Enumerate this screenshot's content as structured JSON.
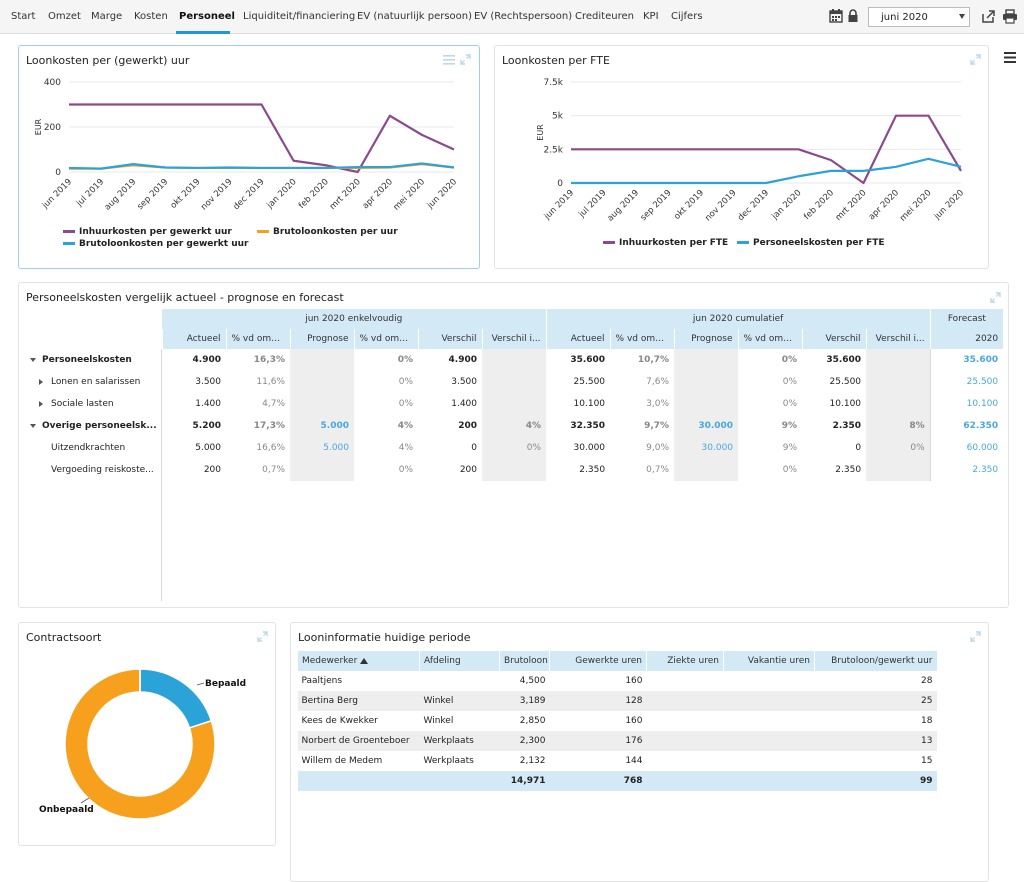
{
  "nav": {
    "items": [
      "Start",
      "Omzet",
      "Marge",
      "Kosten",
      "Personeel",
      "Liquiditeit/financiering",
      "EV (natuurlijk persoon)",
      "EV (Rechtspersoon)",
      "Crediteuren",
      "KPI",
      "Cijfers"
    ],
    "active": "Personeel",
    "period_value": "juni 2020",
    "icons": [
      "calendar-icon",
      "lock-icon",
      "share-icon",
      "print-icon"
    ]
  },
  "panel1": {
    "title": "Loonkosten per (gewerkt) uur",
    "legend": [
      "Inhuurkosten per gewerkt uur",
      "Brutoloonkosten per uur",
      "Brutoloonkosten per gewerkt uur"
    ]
  },
  "panel2": {
    "title": "Loonkosten per FTE",
    "legend": [
      "Inhuurkosten per FTE",
      "Personeelskosten per FTE"
    ]
  },
  "panel3": {
    "title": "Personeelskosten vergelijk actueel - prognose en forecast",
    "group_headers": [
      "jun 2020 enkelvoudig",
      "jun 2020 cumulatief",
      "Forecast"
    ],
    "columns": [
      "Actueel",
      "% vd omzet",
      "Prognose",
      "% vd omzet",
      "Verschil",
      "Verschil i...",
      "Actueel",
      "% vd omzet",
      "Prognose",
      "% vd omzet",
      "Verschil",
      "Verschil i...",
      "2020"
    ],
    "rows": [
      {
        "label": "Personeelskosten",
        "cells": [
          "4.900",
          "16,3%",
          "",
          "0%",
          "4.900",
          "",
          "35.600",
          "10,7%",
          "",
          "0%",
          "35.600",
          "",
          "35.600"
        ]
      },
      {
        "label": "Lonen en salarissen",
        "cells": [
          "3.500",
          "11,6%",
          "",
          "0%",
          "3.500",
          "",
          "25.500",
          "7,6%",
          "",
          "0%",
          "25.500",
          "",
          "25.500"
        ]
      },
      {
        "label": "Sociale lasten",
        "cells": [
          "1.400",
          "4,7%",
          "",
          "0%",
          "1.400",
          "",
          "10.100",
          "3,0%",
          "",
          "0%",
          "10.100",
          "",
          "10.100"
        ]
      },
      {
        "label": "Overige personeelsk...",
        "cells": [
          "5.200",
          "17,3%",
          "5.000",
          "4%",
          "200",
          "4%",
          "32.350",
          "9,7%",
          "30.000",
          "9%",
          "2.350",
          "8%",
          "62.350"
        ]
      },
      {
        "label": "Uitzendkrachten",
        "cells": [
          "5.000",
          "16,6%",
          "5.000",
          "4%",
          "0",
          "0%",
          "30.000",
          "9,0%",
          "30.000",
          "9%",
          "0",
          "0%",
          "60.000"
        ]
      },
      {
        "label": "Vergoeding reiskoste...",
        "cells": [
          "200",
          "0,7%",
          "",
          "0%",
          "200",
          "",
          "2.350",
          "0,7%",
          "",
          "0%",
          "2.350",
          "",
          "2.350"
        ]
      }
    ]
  },
  "panel4": {
    "title": "Contractsoort",
    "slice_labels": [
      "Bepaald",
      "Onbepaald"
    ]
  },
  "panel5": {
    "title": "Looninformatie huidige periode",
    "columns": [
      "Medewerker",
      "Afdeling",
      "Brutoloon",
      "Gewerkte uren",
      "Ziekte uren",
      "Vakantie uren",
      "Brutoloon/gewerkt uur"
    ],
    "rows": [
      [
        "Paaltjens",
        "",
        "4,500",
        "160",
        "",
        "",
        "28"
      ],
      [
        "Bertina Berg",
        "Winkel",
        "3,189",
        "128",
        "",
        "",
        "25"
      ],
      [
        "Kees de Kwekker",
        "Winkel",
        "2,850",
        "160",
        "",
        "",
        "18"
      ],
      [
        "Norbert de Groenteboer",
        "Werkplaats",
        "2,300",
        "176",
        "",
        "",
        "13"
      ],
      [
        "Willem de Medem",
        "Werkplaats",
        "2,132",
        "144",
        "",
        "",
        "15"
      ]
    ],
    "totals": [
      "",
      "",
      "14,971",
      "768",
      "",
      "",
      "99"
    ]
  },
  "colors": {
    "accent": "#1a9ad6",
    "purple": "#8b4a8e",
    "orange": "#f7a01e",
    "blue": "#2ba3d9",
    "header": "#d3e9f5"
  },
  "chart_data": [
    {
      "type": "line",
      "title": "Loonkosten per (gewerkt) uur",
      "ylabel": "EUR",
      "ylim": [
        0,
        400
      ],
      "yticks": [
        0,
        200,
        400
      ],
      "categories": [
        "jun 2019",
        "jul 2019",
        "aug 2019",
        "sep 2019",
        "okt 2019",
        "nov 2019",
        "dec 2019",
        "jan 2020",
        "feb 2020",
        "mrt 2020",
        "apr 2020",
        "mei 2020",
        "jun 2020"
      ],
      "series": [
        {
          "name": "Inhuurkosten per gewerkt uur",
          "color": "#8b4a8e",
          "values": [
            300,
            300,
            300,
            300,
            300,
            300,
            300,
            50,
            30,
            0,
            250,
            165,
            100
          ]
        },
        {
          "name": "Brutoloonkosten per uur",
          "color": "#f7a01e",
          "values": [
            15,
            15,
            30,
            20,
            18,
            18,
            18,
            18,
            18,
            18,
            20,
            35,
            20
          ]
        },
        {
          "name": "Brutoloonkosten per gewerkt uur",
          "color": "#2ba3d9",
          "values": [
            18,
            15,
            35,
            20,
            18,
            20,
            18,
            18,
            18,
            22,
            22,
            38,
            20
          ]
        }
      ],
      "legend": "bottom"
    },
    {
      "type": "line",
      "title": "Loonkosten per FTE",
      "ylabel": "EUR",
      "ylim": [
        0,
        7500
      ],
      "yticks": [
        0,
        2500,
        5000,
        7500
      ],
      "yticklabels": [
        "0",
        "2.5k",
        "5k",
        "7.5k"
      ],
      "categories": [
        "jun 2019",
        "jul 2019",
        "aug 2019",
        "sep 2019",
        "okt 2019",
        "nov 2019",
        "dec 2019",
        "jan 2020",
        "feb 2020",
        "mrt 2020",
        "apr 2020",
        "mei 2020",
        "jun 2020"
      ],
      "series": [
        {
          "name": "Inhuurkosten per FTE",
          "color": "#8b4a8e",
          "values": [
            2500,
            2500,
            2500,
            2500,
            2500,
            2500,
            2500,
            2500,
            1700,
            0,
            5000,
            5000,
            900
          ]
        },
        {
          "name": "Personeelskosten per FTE",
          "color": "#2ba3d9",
          "values": [
            0,
            0,
            0,
            0,
            0,
            0,
            0,
            500,
            900,
            900,
            1200,
            1800,
            1200
          ]
        }
      ],
      "legend": "bottom"
    },
    {
      "type": "pie",
      "title": "Contractsoort",
      "categories": [
        "Bepaald",
        "Onbepaald"
      ],
      "values": [
        20,
        80
      ],
      "colors": [
        "#2ba3d9",
        "#f7a01e"
      ],
      "donut": true
    }
  ]
}
